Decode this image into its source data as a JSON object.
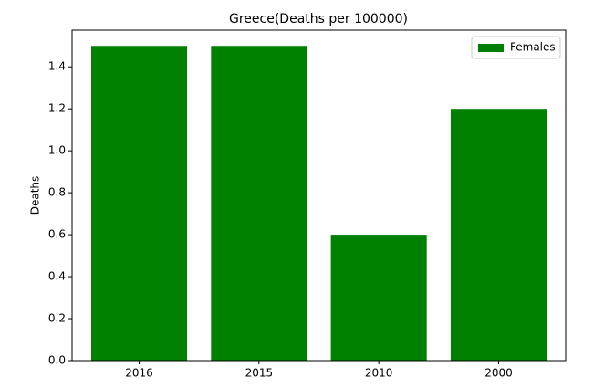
{
  "chart_data": {
    "type": "bar",
    "title": "Greece(Deaths per 100000)",
    "y_label": "Deaths",
    "categories": [
      "2016",
      "2015",
      "2010",
      "2000"
    ],
    "series": [
      {
        "name": "Females",
        "color": "#008000",
        "values": [
          1.5,
          1.5,
          0.6,
          1.2
        ]
      }
    ],
    "ylim": [
      0,
      1.575
    ],
    "yticks": [
      {
        "value": 0,
        "label": "0.0"
      },
      0.2,
      0.4,
      0.6,
      0.8,
      {
        "value": 1,
        "label": "1.0"
      },
      1.2,
      1.4
    ],
    "legend": "upper right",
    "grid": false
  }
}
